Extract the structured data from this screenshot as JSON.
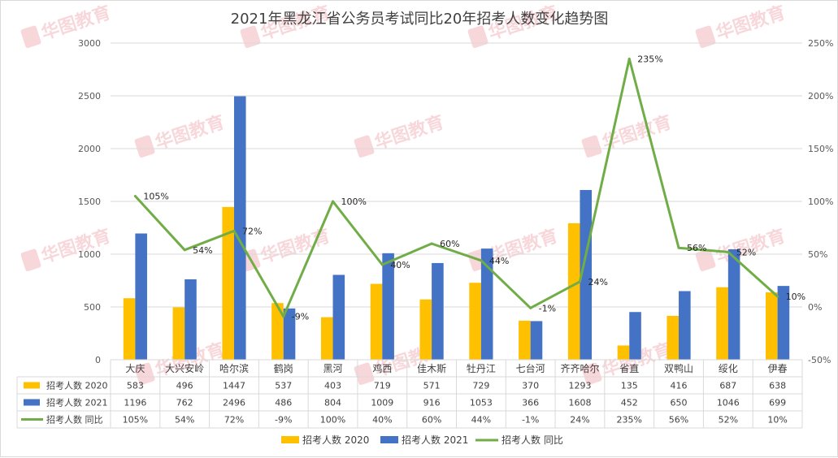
{
  "chart_data": {
    "type": "bar",
    "title": "2021年黑龙江省公务员考试同比20年招考人数变化趋势图",
    "categories": [
      "大庆",
      "大兴安岭",
      "哈尔滨",
      "鹤岗",
      "黑河",
      "鸡西",
      "佳木斯",
      "牡丹江",
      "七台河",
      "齐齐哈尔",
      "省直",
      "双鸭山",
      "绥化",
      "伊春"
    ],
    "series": [
      {
        "name": "招考人数 2020",
        "type": "bar",
        "axis": "left",
        "color": "#FFC000",
        "values": [
          583,
          496,
          1447,
          537,
          403,
          719,
          571,
          729,
          370,
          1293,
          135,
          416,
          687,
          638
        ],
        "labels": [
          "583",
          "496",
          "1447",
          "537",
          "403",
          "719",
          "571",
          "729",
          "370",
          "1293",
          "135",
          "416",
          "687",
          "638"
        ]
      },
      {
        "name": "招考人数 2021",
        "type": "bar",
        "axis": "left",
        "color": "#4472C4",
        "values": [
          1196,
          762,
          2496,
          486,
          804,
          1009,
          916,
          1053,
          366,
          1608,
          452,
          650,
          1046,
          699
        ],
        "labels": [
          "1196",
          "762",
          "2496",
          "486",
          "804",
          "1009",
          "916",
          "1053",
          "366",
          "1608",
          "452",
          "650",
          "1046",
          "699"
        ]
      },
      {
        "name": "招考人数 同比",
        "type": "line",
        "axis": "right",
        "color": "#70AD47",
        "values": [
          105,
          54,
          72,
          -9,
          100,
          40,
          60,
          44,
          -1,
          24,
          235,
          56,
          52,
          10
        ],
        "labels": [
          "105%",
          "54%",
          "72%",
          "-9%",
          "100%",
          "40%",
          "60%",
          "44%",
          "-1%",
          "24%",
          "235%",
          "56%",
          "52%",
          "10%"
        ]
      }
    ],
    "y_left": {
      "ylim": [
        0,
        3000
      ],
      "ticks": [
        "0",
        "500",
        "1000",
        "1500",
        "2000",
        "2500",
        "3000"
      ],
      "tick_values": [
        0,
        500,
        1000,
        1500,
        2000,
        2500,
        3000
      ]
    },
    "y_right": {
      "ylim": [
        -50,
        250
      ],
      "ticks": [
        "-50%",
        "0%",
        "50%",
        "100%",
        "150%",
        "200%",
        "250%"
      ],
      "tick_values": [
        -50,
        0,
        50,
        100,
        150,
        200,
        250
      ]
    },
    "grid": true,
    "legend": "bottom",
    "data_table": true,
    "watermark": "华图教育 HUATU.COM"
  }
}
